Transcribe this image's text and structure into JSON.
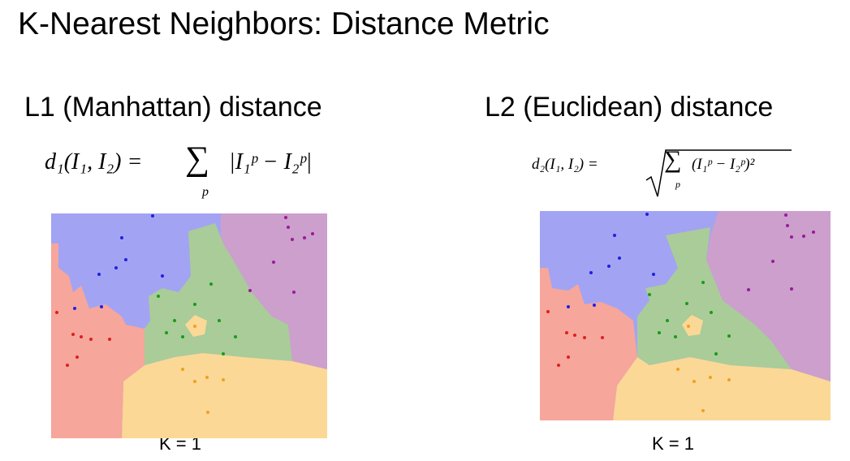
{
  "title": "K-Nearest Neighbors: Distance Metric",
  "left": {
    "heading": "L1 (Manhattan) distance",
    "formula": {
      "lhs": "d₁(I₁, I₂) =",
      "sum": "∑",
      "index": "p",
      "term": "|I₁ᵖ − I₂ᵖ|"
    },
    "caption": "K = 1"
  },
  "right": {
    "heading": "L2 (Euclidean) distance",
    "formula": {
      "lhs": "d₂(I₁, I₂) =",
      "sum": "∑",
      "index": "p",
      "term": "(I₁ᵖ − I₂ᵖ)²"
    },
    "caption": "K = 1"
  }
}
